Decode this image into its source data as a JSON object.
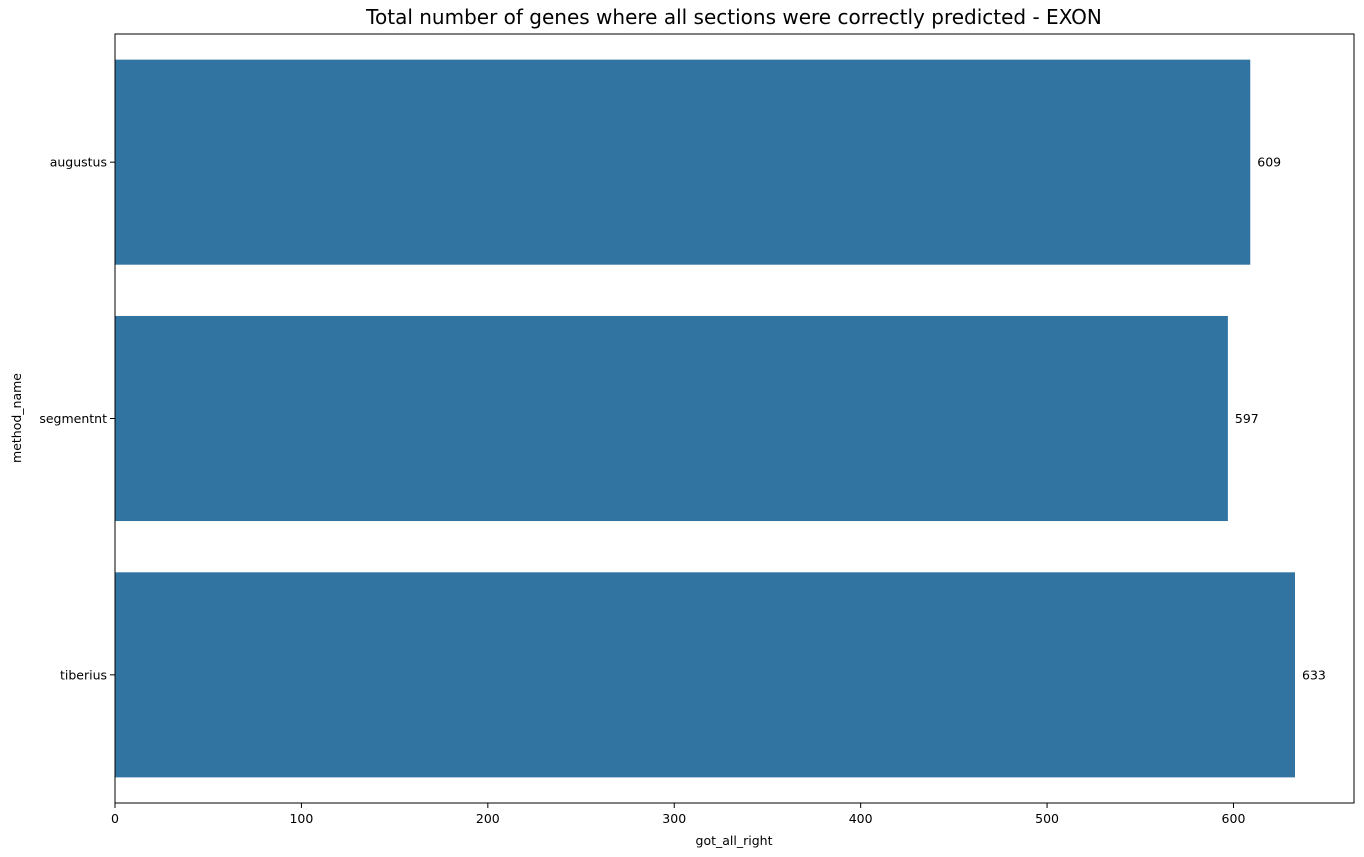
{
  "chart_data": {
    "type": "bar",
    "orientation": "horizontal",
    "title": "Total number of genes where all sections were correctly predicted - EXON",
    "xlabel": "got_all_right",
    "ylabel": "method_name",
    "categories": [
      "augustus",
      "segmentnt",
      "tiberius"
    ],
    "values": [
      609,
      597,
      633
    ],
    "data_labels": [
      "609",
      "597",
      "633"
    ],
    "xlim": [
      0,
      664.65
    ],
    "xticks": [
      0,
      100,
      200,
      300,
      400,
      500,
      600
    ],
    "xtick_labels": [
      "0",
      "100",
      "200",
      "300",
      "400",
      "500",
      "600"
    ],
    "grid": false,
    "legend": "none",
    "colors": {
      "bar": "#3274a1",
      "axis": "#000000",
      "background": "#ffffff"
    }
  }
}
